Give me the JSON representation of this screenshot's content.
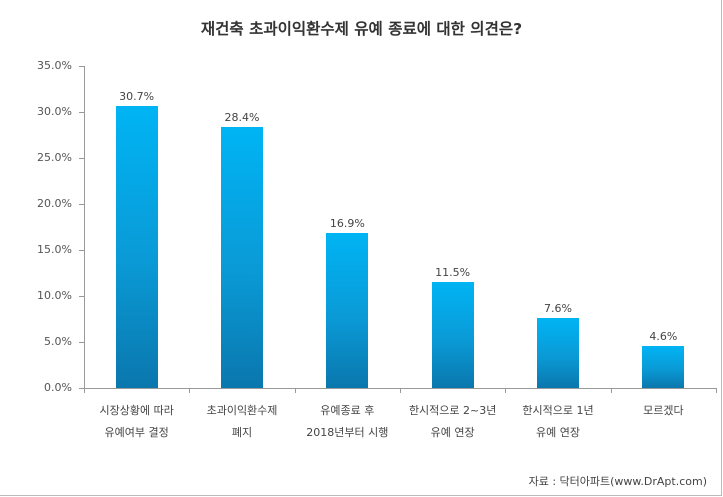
{
  "chart_data": {
    "type": "bar",
    "title": "재건축 초과이익환수제 유예 종료에 대한 의견은?",
    "categories": [
      [
        "시장상황에 따라",
        "유예여부 결정"
      ],
      [
        "초과이익환수제",
        "폐지"
      ],
      [
        "유예종료 후",
        "2018년부터 시행"
      ],
      [
        "한시적으로 2~3년",
        "유예 연장"
      ],
      [
        "한시적으로 1년",
        "유예 연장"
      ],
      [
        "모르겠다",
        ""
      ]
    ],
    "values": [
      30.7,
      28.4,
      16.9,
      11.5,
      7.6,
      4.6
    ],
    "value_labels": [
      "30.7%",
      "28.4%",
      "16.9%",
      "11.5%",
      "7.6%",
      "4.6%"
    ],
    "xlabel": "",
    "ylabel": "",
    "ylim": [
      0,
      35
    ],
    "yticks": [
      "0.0%",
      "5.0%",
      "10.0%",
      "15.0%",
      "20.0%",
      "25.0%",
      "30.0%",
      "35.0%"
    ],
    "grid": false,
    "legend": "none",
    "bar_color": "#0a9ad6",
    "source": "자료 : 닥터아파트(www.DrApt.com)"
  }
}
